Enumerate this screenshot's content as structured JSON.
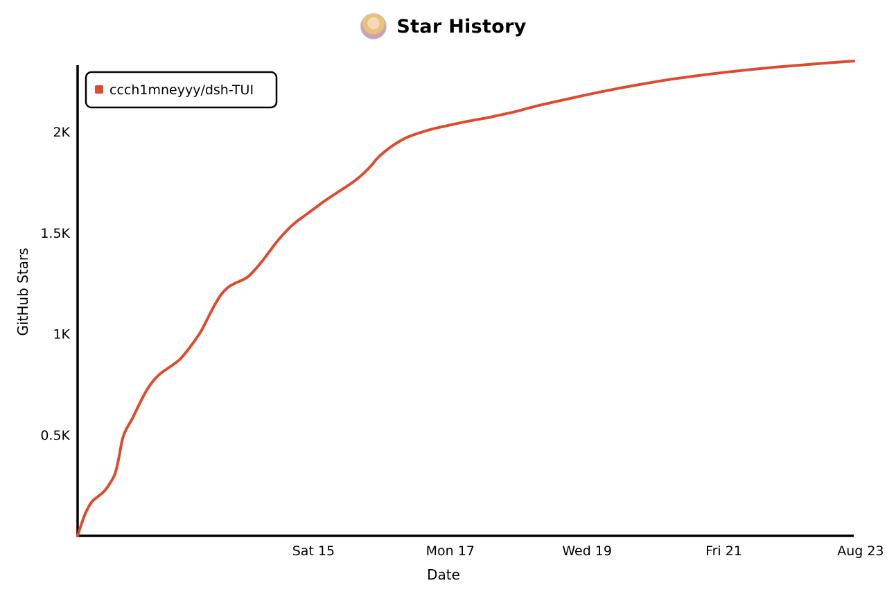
{
  "header": {
    "title": "Star History",
    "avatar_icon": "user-avatar-icon"
  },
  "chart_data": {
    "type": "line",
    "title": "Star History",
    "xlabel": "Date",
    "ylabel": "GitHub Stars",
    "x_ticks": [
      "Sat 15",
      "Mon 17",
      "Wed 19",
      "Fri 21",
      "Aug 23"
    ],
    "y_ticks": [
      "0.5K",
      "1K",
      "1.5K",
      "2K"
    ],
    "xlim": [
      0,
      11.35
    ],
    "ylim": [
      0,
      2330
    ],
    "grid": false,
    "legend": "top-left",
    "series": [
      {
        "name": "ccch1mneyyy/dsh-TUI",
        "color": "#dd4b2e",
        "x": [
          0,
          0.1,
          0.2,
          0.3,
          0.4,
          0.5,
          0.55,
          0.6,
          0.65,
          0.7,
          0.8,
          0.9,
          1.0,
          1.1,
          1.2,
          1.3,
          1.4,
          1.5,
          1.6,
          1.7,
          1.8,
          1.9,
          2.0,
          2.1,
          2.2,
          2.3,
          2.4,
          2.5,
          2.6,
          2.7,
          2.8,
          2.9,
          3.0,
          3.1,
          3.2,
          3.3,
          3.4,
          3.5,
          3.6,
          3.7,
          3.8,
          3.9,
          4.0,
          4.1,
          4.2,
          4.3,
          4.4,
          4.6,
          4.8,
          5.0,
          5.2,
          5.4,
          5.6,
          5.8,
          6.0,
          6.2,
          6.4,
          6.6,
          6.8,
          7.0,
          7.4,
          7.8,
          8.2,
          8.6,
          9.0,
          9.4,
          9.8,
          10.2,
          10.6,
          11.0,
          11.35
        ],
        "y": [
          0,
          100,
          165,
          195,
          225,
          275,
          310,
          380,
          470,
          520,
          580,
          650,
          715,
          765,
          800,
          825,
          848,
          875,
          915,
          960,
          1010,
          1075,
          1140,
          1195,
          1230,
          1250,
          1265,
          1285,
          1320,
          1360,
          1405,
          1450,
          1490,
          1525,
          1555,
          1580,
          1605,
          1630,
          1655,
          1678,
          1700,
          1722,
          1745,
          1770,
          1800,
          1835,
          1875,
          1930,
          1970,
          1995,
          2015,
          2030,
          2045,
          2058,
          2070,
          2085,
          2100,
          2118,
          2135,
          2150,
          2180,
          2208,
          2233,
          2256,
          2275,
          2292,
          2307,
          2320,
          2331,
          2342,
          2350
        ]
      }
    ]
  }
}
